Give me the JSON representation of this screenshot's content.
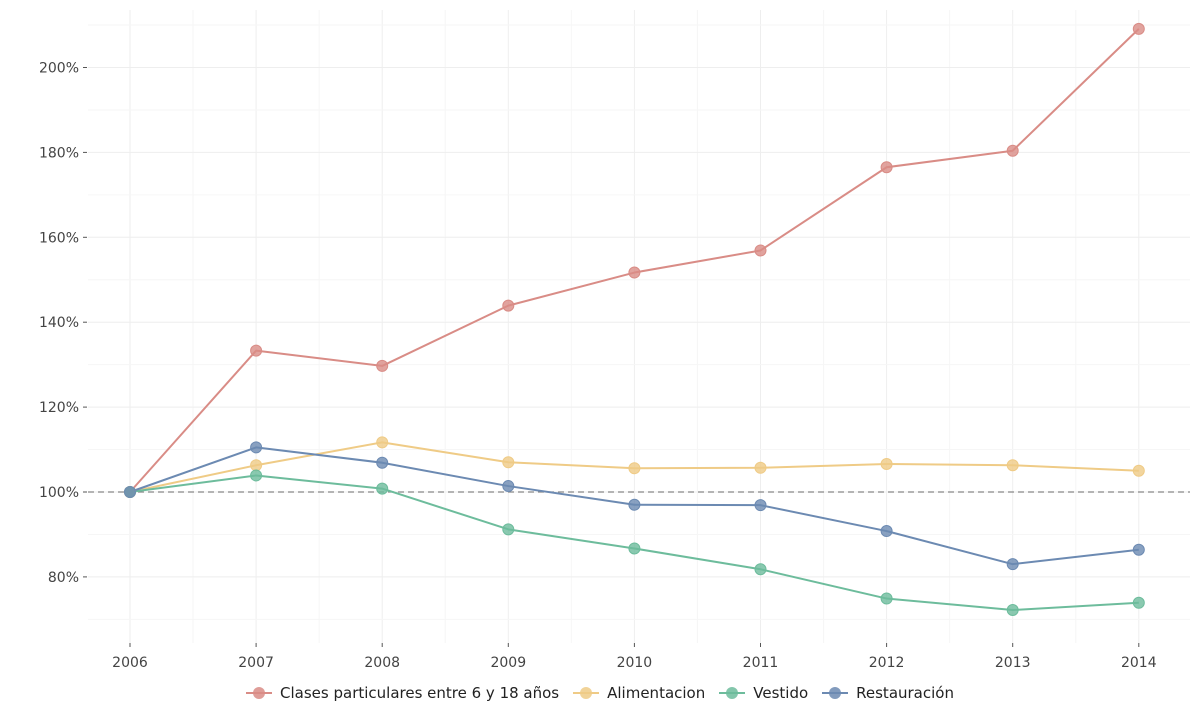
{
  "chart_data": {
    "type": "line",
    "title": "",
    "xlabel": "",
    "ylabel": "",
    "x": [
      "2006",
      "2007",
      "2008",
      "2009",
      "2010",
      "2011",
      "2012",
      "2013",
      "2014"
    ],
    "ylim": [
      65,
      210
    ],
    "y_ticks": [
      80,
      100,
      120,
      140,
      160,
      180,
      200
    ],
    "y_tick_labels": [
      "80%",
      "100%",
      "120%",
      "140%",
      "160%",
      "180%",
      "200%"
    ],
    "reference_line": {
      "value": 100,
      "style": "dashed",
      "color": "#888888"
    },
    "grid": true,
    "legend_position": "bottom",
    "series": [
      {
        "name": "Clases particulares entre 6 y 18 años",
        "color": "#D98C86",
        "values": [
          100,
          133.3,
          129.7,
          143.9,
          151.7,
          156.9,
          176.5,
          180.4,
          209.1
        ]
      },
      {
        "name": "Alimentacion",
        "color": "#EFCB86",
        "values": [
          100,
          106.3,
          111.7,
          107.0,
          105.6,
          105.7,
          106.6,
          106.3,
          105.0
        ]
      },
      {
        "name": "Vestido",
        "color": "#6DBC9C",
        "values": [
          100,
          103.9,
          100.8,
          91.2,
          86.7,
          81.8,
          74.9,
          72.2,
          73.9
        ]
      },
      {
        "name": "Restauración",
        "color": "#6C8AB2",
        "values": [
          100,
          110.5,
          106.9,
          101.4,
          97.0,
          96.9,
          90.8,
          83.0,
          86.4
        ]
      }
    ]
  }
}
